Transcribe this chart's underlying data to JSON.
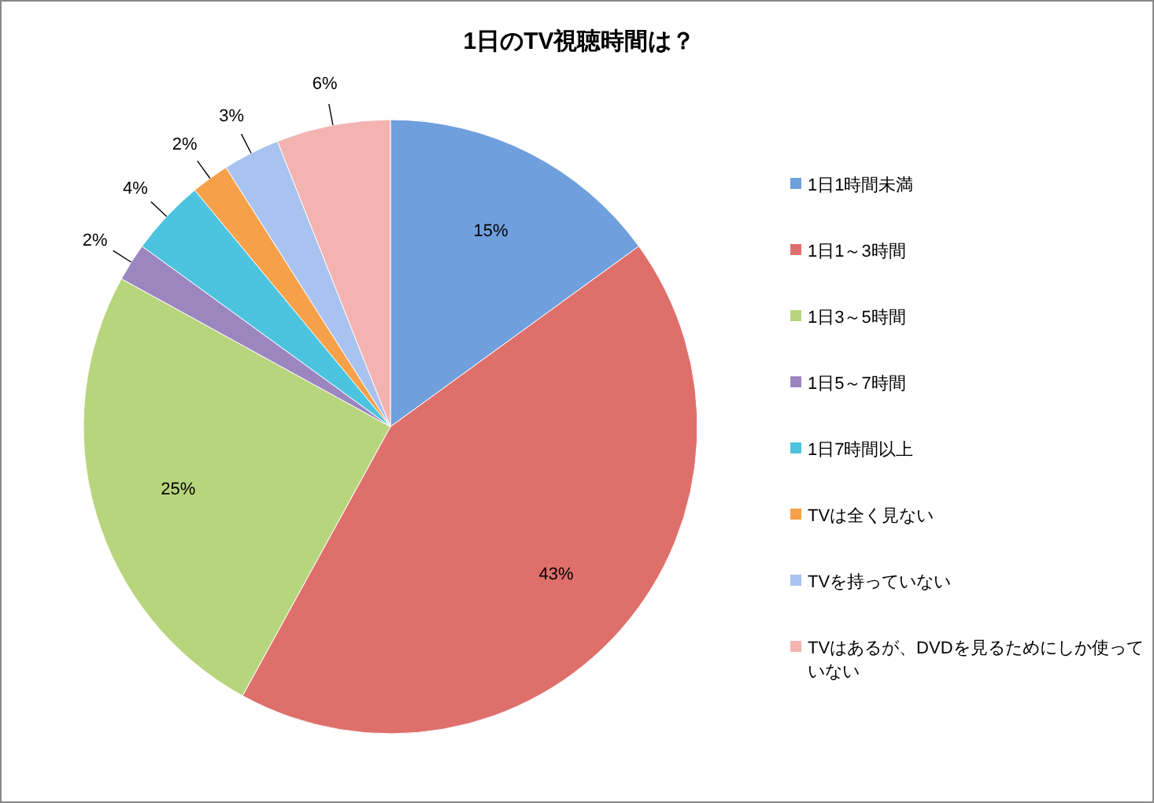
{
  "chart_data": {
    "type": "pie",
    "title": "1日のTV視聴時間は？",
    "categories": [
      "1日1時間未満",
      "1日1～3時間",
      "1日3～5時間",
      "1日5～7時間",
      "1日7時間以上",
      "TVは全く見ない",
      "TVを持っていない",
      "TVはあるが、DVDを見るためにしか使っていない"
    ],
    "values": [
      15,
      43,
      25,
      2,
      4,
      2,
      3,
      6
    ],
    "value_labels": [
      "15%",
      "43%",
      "25%",
      "2%",
      "4%",
      "2%",
      "3%",
      "6%"
    ],
    "colors": [
      "#6f9fdc",
      "#df6f6b",
      "#b7d57c",
      "#9c86c0",
      "#4cc4df",
      "#f6a04a",
      "#a8c3ef",
      "#f3b3b1"
    ],
    "legend": "right"
  }
}
